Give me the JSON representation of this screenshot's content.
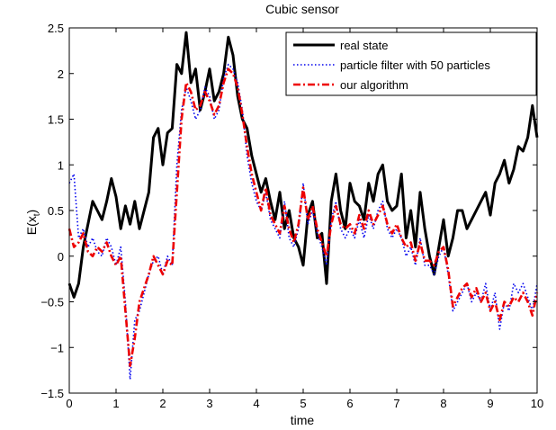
{
  "chart_data": {
    "type": "line",
    "title": "Cubic sensor",
    "xlabel": "time",
    "ylabel": "E(x",
    "ylabel_subscript": "t",
    "ylabel_close": ")",
    "xlim": [
      0,
      10
    ],
    "ylim": [
      -1.5,
      2.5
    ],
    "xticks": [
      0,
      1,
      2,
      3,
      4,
      5,
      6,
      7,
      8,
      9,
      10
    ],
    "yticks": [
      -1.5,
      -1,
      -0.5,
      0,
      0.5,
      1,
      1.5,
      2,
      2.5
    ],
    "grid": false,
    "legend_position": "top-right",
    "series": [
      {
        "name": "real state",
        "color": "#000000",
        "style": "solid",
        "x": [
          0,
          0.1,
          0.2,
          0.3,
          0.4,
          0.5,
          0.6,
          0.7,
          0.8,
          0.9,
          1.0,
          1.1,
          1.2,
          1.3,
          1.4,
          1.5,
          1.6,
          1.7,
          1.8,
          1.9,
          2.0,
          2.1,
          2.2,
          2.3,
          2.4,
          2.5,
          2.6,
          2.7,
          2.8,
          2.9,
          3.0,
          3.1,
          3.2,
          3.3,
          3.4,
          3.5,
          3.6,
          3.7,
          3.8,
          3.9,
          4.0,
          4.1,
          4.2,
          4.3,
          4.4,
          4.5,
          4.6,
          4.7,
          4.8,
          4.9,
          5.0,
          5.1,
          5.2,
          5.3,
          5.4,
          5.5,
          5.6,
          5.7,
          5.8,
          5.9,
          6.0,
          6.1,
          6.2,
          6.3,
          6.4,
          6.5,
          6.6,
          6.7,
          6.8,
          6.9,
          7.0,
          7.1,
          7.2,
          7.3,
          7.4,
          7.5,
          7.6,
          7.7,
          7.8,
          7.9,
          8.0,
          8.1,
          8.2,
          8.3,
          8.4,
          8.5,
          8.6,
          8.7,
          8.8,
          8.9,
          9.0,
          9.1,
          9.2,
          9.3,
          9.4,
          9.5,
          9.6,
          9.7,
          9.8,
          9.9,
          10.0
        ],
        "y": [
          -0.3,
          -0.45,
          -0.3,
          0.1,
          0.35,
          0.6,
          0.5,
          0.4,
          0.6,
          0.85,
          0.65,
          0.3,
          0.55,
          0.35,
          0.6,
          0.3,
          0.5,
          0.7,
          1.3,
          1.4,
          1.0,
          1.35,
          1.4,
          2.1,
          2.0,
          2.45,
          1.9,
          2.05,
          1.6,
          1.8,
          2.05,
          1.7,
          1.8,
          2.0,
          2.4,
          2.2,
          1.75,
          1.5,
          1.4,
          1.1,
          0.9,
          0.7,
          0.85,
          0.6,
          0.4,
          0.7,
          0.3,
          0.5,
          0.2,
          0.1,
          -0.1,
          0.45,
          0.6,
          0.2,
          0.25,
          -0.3,
          0.6,
          0.9,
          0.5,
          0.3,
          0.8,
          0.6,
          0.55,
          0.4,
          0.8,
          0.6,
          0.9,
          1.0,
          0.6,
          0.5,
          0.55,
          0.9,
          0.2,
          0.5,
          0.1,
          0.7,
          0.3,
          0.0,
          -0.2,
          0.1,
          0.4,
          0.0,
          0.2,
          0.5,
          0.5,
          0.3,
          0.4,
          0.5,
          0.6,
          0.7,
          0.45,
          0.8,
          0.9,
          1.05,
          0.8,
          0.95,
          1.2,
          1.15,
          1.3,
          1.65,
          1.3
        ]
      },
      {
        "name": "particle filter with 50 particles",
        "color": "#0000ee",
        "style": "dotted",
        "x": [
          0,
          0.1,
          0.2,
          0.3,
          0.4,
          0.5,
          0.6,
          0.7,
          0.8,
          0.9,
          1.0,
          1.1,
          1.2,
          1.3,
          1.4,
          1.5,
          1.6,
          1.7,
          1.8,
          1.9,
          2.0,
          2.1,
          2.2,
          2.3,
          2.4,
          2.5,
          2.6,
          2.7,
          2.8,
          2.9,
          3.0,
          3.1,
          3.2,
          3.3,
          3.4,
          3.5,
          3.6,
          3.7,
          3.8,
          3.9,
          4.0,
          4.1,
          4.2,
          4.3,
          4.4,
          4.5,
          4.6,
          4.7,
          4.8,
          4.9,
          5.0,
          5.1,
          5.2,
          5.3,
          5.4,
          5.5,
          5.6,
          5.7,
          5.8,
          5.9,
          6.0,
          6.1,
          6.2,
          6.3,
          6.4,
          6.5,
          6.6,
          6.7,
          6.8,
          6.9,
          7.0,
          7.1,
          7.2,
          7.3,
          7.4,
          7.5,
          7.6,
          7.7,
          7.8,
          7.9,
          8.0,
          8.1,
          8.2,
          8.3,
          8.4,
          8.5,
          8.6,
          8.7,
          8.8,
          8.9,
          9.0,
          9.1,
          9.2,
          9.3,
          9.4,
          9.5,
          9.6,
          9.7,
          9.8,
          9.9,
          10.0
        ],
        "y": [
          0.8,
          0.9,
          0.2,
          0.3,
          0.1,
          0.2,
          0.05,
          0.0,
          0.2,
          0.1,
          -0.1,
          0.1,
          -0.5,
          -1.35,
          -0.7,
          -0.6,
          -0.4,
          -0.2,
          -0.05,
          0.0,
          -0.2,
          0.0,
          -0.1,
          1.0,
          1.6,
          1.85,
          1.7,
          1.5,
          1.6,
          1.85,
          1.75,
          1.5,
          1.6,
          1.95,
          2.1,
          2.05,
          1.9,
          1.6,
          1.1,
          0.8,
          0.6,
          0.5,
          0.7,
          0.4,
          0.3,
          0.2,
          0.6,
          0.2,
          0.1,
          0.3,
          0.8,
          0.35,
          0.5,
          0.25,
          0.1,
          -0.1,
          0.4,
          0.6,
          0.3,
          0.2,
          0.3,
          0.2,
          0.4,
          0.2,
          0.45,
          0.3,
          0.5,
          0.6,
          0.3,
          0.2,
          0.3,
          0.2,
          0.0,
          0.1,
          -0.1,
          0.2,
          -0.1,
          -0.1,
          -0.2,
          0.0,
          0.1,
          -0.2,
          -0.6,
          -0.5,
          -0.4,
          -0.3,
          -0.5,
          -0.4,
          -0.5,
          -0.3,
          -0.6,
          -0.4,
          -0.8,
          -0.5,
          -0.6,
          -0.3,
          -0.4,
          -0.3,
          -0.45,
          -0.6,
          -0.3
        ]
      },
      {
        "name": "our algorithm",
        "color": "#ee0000",
        "style": "dashdot",
        "x": [
          0,
          0.1,
          0.2,
          0.3,
          0.4,
          0.5,
          0.6,
          0.7,
          0.8,
          0.9,
          1.0,
          1.1,
          1.2,
          1.3,
          1.4,
          1.5,
          1.6,
          1.7,
          1.8,
          1.9,
          2.0,
          2.1,
          2.2,
          2.3,
          2.4,
          2.5,
          2.6,
          2.7,
          2.8,
          2.9,
          3.0,
          3.1,
          3.2,
          3.3,
          3.4,
          3.5,
          3.6,
          3.7,
          3.8,
          3.9,
          4.0,
          4.1,
          4.2,
          4.3,
          4.4,
          4.5,
          4.6,
          4.7,
          4.8,
          4.9,
          5.0,
          5.1,
          5.2,
          5.3,
          5.4,
          5.5,
          5.6,
          5.7,
          5.8,
          5.9,
          6.0,
          6.1,
          6.2,
          6.3,
          6.4,
          6.5,
          6.6,
          6.7,
          6.8,
          6.9,
          7.0,
          7.1,
          7.2,
          7.3,
          7.4,
          7.5,
          7.6,
          7.7,
          7.8,
          7.9,
          8.0,
          8.1,
          8.2,
          8.3,
          8.4,
          8.5,
          8.6,
          8.7,
          8.8,
          8.9,
          9.0,
          9.1,
          9.2,
          9.3,
          9.4,
          9.5,
          9.6,
          9.7,
          9.8,
          9.9,
          10.0
        ],
        "y": [
          0.3,
          0.1,
          0.15,
          0.25,
          0.05,
          0.0,
          0.1,
          0.05,
          0.15,
          0.0,
          -0.1,
          0.0,
          -0.6,
          -1.2,
          -0.9,
          -0.5,
          -0.35,
          -0.2,
          0.0,
          -0.1,
          -0.2,
          -0.05,
          -0.1,
          0.7,
          1.5,
          1.9,
          1.8,
          1.6,
          1.65,
          1.8,
          1.7,
          1.55,
          1.65,
          1.9,
          2.05,
          2.0,
          1.85,
          1.55,
          1.2,
          0.9,
          0.7,
          0.5,
          0.75,
          0.45,
          0.35,
          0.25,
          0.55,
          0.3,
          0.15,
          0.35,
          0.75,
          0.4,
          0.55,
          0.3,
          0.15,
          0.0,
          0.35,
          0.55,
          0.35,
          0.3,
          0.35,
          0.25,
          0.45,
          0.3,
          0.5,
          0.35,
          0.45,
          0.55,
          0.35,
          0.25,
          0.35,
          0.2,
          0.1,
          0.15,
          -0.05,
          0.15,
          -0.05,
          -0.05,
          -0.1,
          0.05,
          0.1,
          -0.15,
          -0.55,
          -0.45,
          -0.35,
          -0.3,
          -0.45,
          -0.35,
          -0.5,
          -0.4,
          -0.6,
          -0.5,
          -0.7,
          -0.5,
          -0.55,
          -0.45,
          -0.5,
          -0.4,
          -0.5,
          -0.65,
          -0.4
        ]
      }
    ]
  }
}
